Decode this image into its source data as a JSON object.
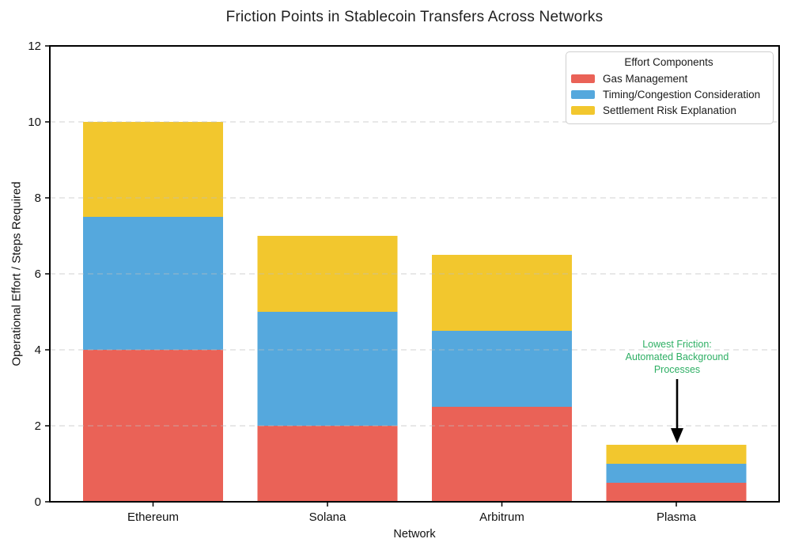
{
  "chart_data": {
    "type": "bar",
    "stacked": true,
    "title": "Friction Points in Stablecoin Transfers Across Networks",
    "xlabel": "Network",
    "ylabel": "Operational Effort / Steps Required",
    "categories": [
      "Ethereum",
      "Solana",
      "Arbitrum",
      "Plasma"
    ],
    "series": [
      {
        "name": "Gas Management",
        "color": "#EA6257",
        "values": [
          4,
          2,
          2.5,
          0.5
        ]
      },
      {
        "name": "Timing/Congestion Consideration",
        "color": "#55A8DD",
        "values": [
          3.5,
          3,
          2,
          0.5
        ]
      },
      {
        "name": "Settlement Risk Explanation",
        "color": "#F2C72E",
        "values": [
          2.5,
          2,
          2,
          0.5
        ]
      }
    ],
    "totals": [
      10,
      7,
      6.5,
      1.5
    ],
    "ylim": [
      0,
      12
    ],
    "yticks": [
      0,
      2,
      4,
      6,
      8,
      10,
      12
    ],
    "grid": "horizontal-dashed",
    "legend_title": "Effort Components",
    "legend_position": "top-right",
    "annotation": {
      "lines": [
        "Lowest Friction:",
        "Automated Background",
        "Processes"
      ],
      "color": "#2EAF64",
      "target_category": "Plasma",
      "arrow_color": "#000000"
    }
  }
}
